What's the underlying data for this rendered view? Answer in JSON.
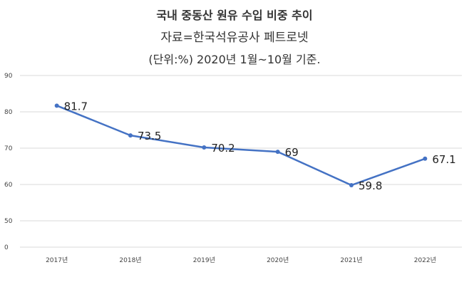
{
  "chart_data": {
    "type": "line",
    "title": "국내 중동산 원유 수입 비중 추이",
    "subtitle_lines": [
      "자료=한국석유공사 페트로넷",
      "(단위:%) 2020년 1월~10월 기준."
    ],
    "categories": [
      "2017년",
      "2018년",
      "2019년",
      "2020년",
      "2021년",
      "2022년"
    ],
    "series": [
      {
        "values": [
          81.7,
          73.5,
          70.2,
          69,
          59.8,
          67.1
        ],
        "labels": [
          "81.7",
          "73.5",
          "70.2",
          "69",
          "59.8",
          "67.1"
        ]
      }
    ],
    "y_ticks": [
      "90",
      "80",
      "70",
      "60",
      "50",
      "0"
    ],
    "line_color": "#4472c4",
    "grid": true,
    "axis_break": "y axis jumps from 50 to 0"
  }
}
